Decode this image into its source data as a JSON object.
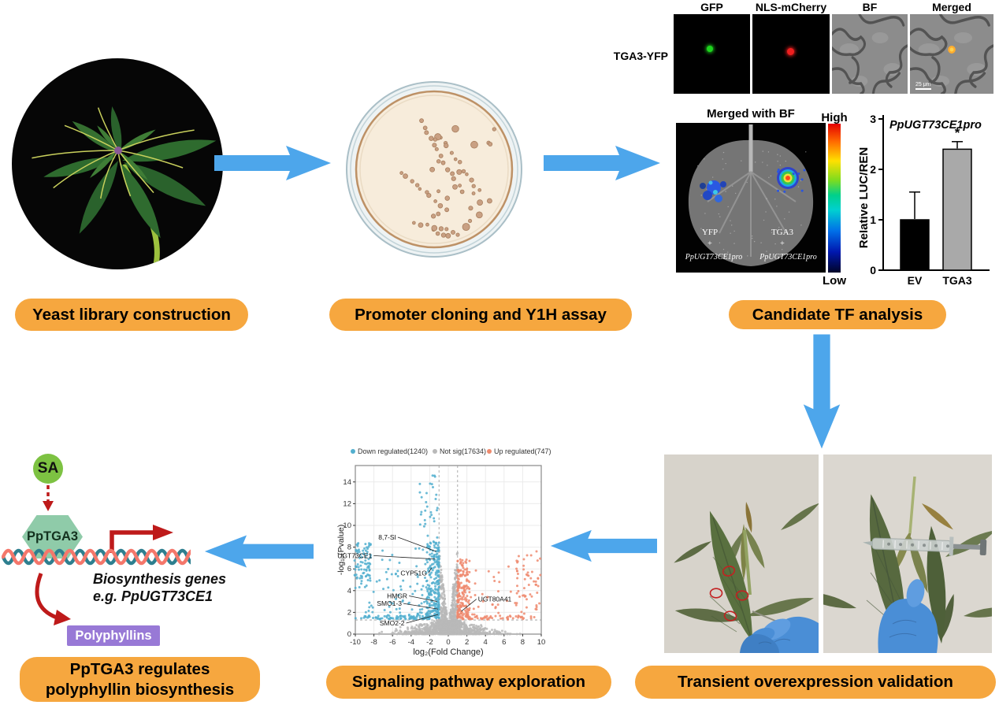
{
  "colors": {
    "arrow_blue": "#4DA6EB",
    "pill_orange": "#F6A73F",
    "down_blue": "#52AFCF",
    "not_sig_gray": "#B9B9B9",
    "up_salmon": "#EE8A6E",
    "sa_green": "#7DC242",
    "tga3_green": "#8FCBA9",
    "polyphyllins_purple": "#9879D6",
    "dna_teal": "#2E7F8F",
    "dna_salmon": "#F4776B",
    "red_arrow": "#BE1A1A"
  },
  "stage_labels": {
    "yeast": "Yeast library construction",
    "promoter": "Promoter cloning and Y1H assay",
    "candidate": "Candidate TF analysis",
    "signaling": "Signaling pathway exploration",
    "transient": "Transient overexpression validation",
    "regulates_line1": "PpTGA3 regulates",
    "regulates_line2": "polyphyllin biosynthesis"
  },
  "microscopy": {
    "row_label": "TGA3-YFP",
    "panel_titles": [
      "GFP",
      "NLS-mCherry",
      "BF",
      "Merged"
    ],
    "scale_bar": "25 μm"
  },
  "luciferase_image": {
    "title": "Merged with BF",
    "high": "High",
    "low": "Low",
    "left_construct": {
      "line1": "YFP",
      "line2": "+",
      "line3": "PpUGT73CE1pro"
    },
    "right_construct": {
      "line1": "TGA3",
      "line2": "+",
      "line3": "PpUGT73CE1pro"
    }
  },
  "pathway_diagram": {
    "sa": "SA",
    "tf": "PpTGA3",
    "genes_line1": "Biosynthesis genes",
    "genes_line2_prefix": "e.g. ",
    "genes_line2_gene": "PpUGT73CE1",
    "product": "Polyphyllins"
  },
  "chart_data": [
    {
      "id": "luc_ren_bar",
      "type": "bar",
      "title": "PpUGT73CE1pro",
      "ylabel": "Relative LUC/REN",
      "ylim": [
        0,
        3
      ],
      "yticks": [
        0,
        1,
        2,
        3
      ],
      "categories": [
        "EV",
        "TGA3"
      ],
      "values": [
        1.0,
        2.4
      ],
      "errors_upper": [
        0.55,
        0.15
      ],
      "bar_colors": [
        "#000000",
        "#A9A9A9"
      ],
      "significance": [
        "",
        "*"
      ]
    },
    {
      "id": "volcano",
      "type": "scatter",
      "xlabel": "log₂(Fold Change)",
      "ylabel": "-log₁₀(Pvalue)",
      "xlim": [
        -10,
        10
      ],
      "ylim": [
        0,
        15
      ],
      "xticks": [
        -10,
        -8,
        -6,
        -4,
        -2,
        0,
        2,
        4,
        6,
        8,
        10
      ],
      "yticks": [
        0,
        2,
        4,
        6,
        8,
        10,
        12,
        14
      ],
      "legend": [
        {
          "label": "Down regulated(1240)",
          "color": "#52AFCF"
        },
        {
          "label": "Not sig(17634)",
          "color": "#B9B9B9"
        },
        {
          "label": "Up regulated(747)",
          "color": "#EE8A6E"
        }
      ],
      "thresholds": {
        "x": [
          -1,
          1
        ],
        "y": 1.3
      },
      "gene_labels": [
        {
          "name": "8,7-SI",
          "label_x": -5.6,
          "label_y": 8.7,
          "point_x": -1.3,
          "point_y": 7.6
        },
        {
          "name": "UGT73CE1",
          "label_x": -8.2,
          "label_y": 7.0,
          "point_x": -1.4,
          "point_y": 6.9
        },
        {
          "name": "CYP51G",
          "label_x": -2.3,
          "label_y": 5.4,
          "point_x": -1.8,
          "point_y": 6.1
        },
        {
          "name": "HMGR",
          "label_x": -4.4,
          "label_y": 3.3,
          "point_x": -1.2,
          "point_y": 3.0
        },
        {
          "name": "SMO1-3",
          "label_x": -5.0,
          "label_y": 2.6,
          "point_x": -1.1,
          "point_y": 2.3
        },
        {
          "name": "SMO2-2",
          "label_x": -4.7,
          "label_y": 0.8,
          "point_x": -1.1,
          "point_y": 1.8
        },
        {
          "name": "UGT80A41",
          "label_x": 3.2,
          "label_y": 3.0,
          "point_x": 1.4,
          "point_y": 2.1
        }
      ],
      "render_hints": {
        "seed": 42,
        "n_gray": 1500,
        "n_down": 520,
        "n_up": 330
      }
    }
  ]
}
